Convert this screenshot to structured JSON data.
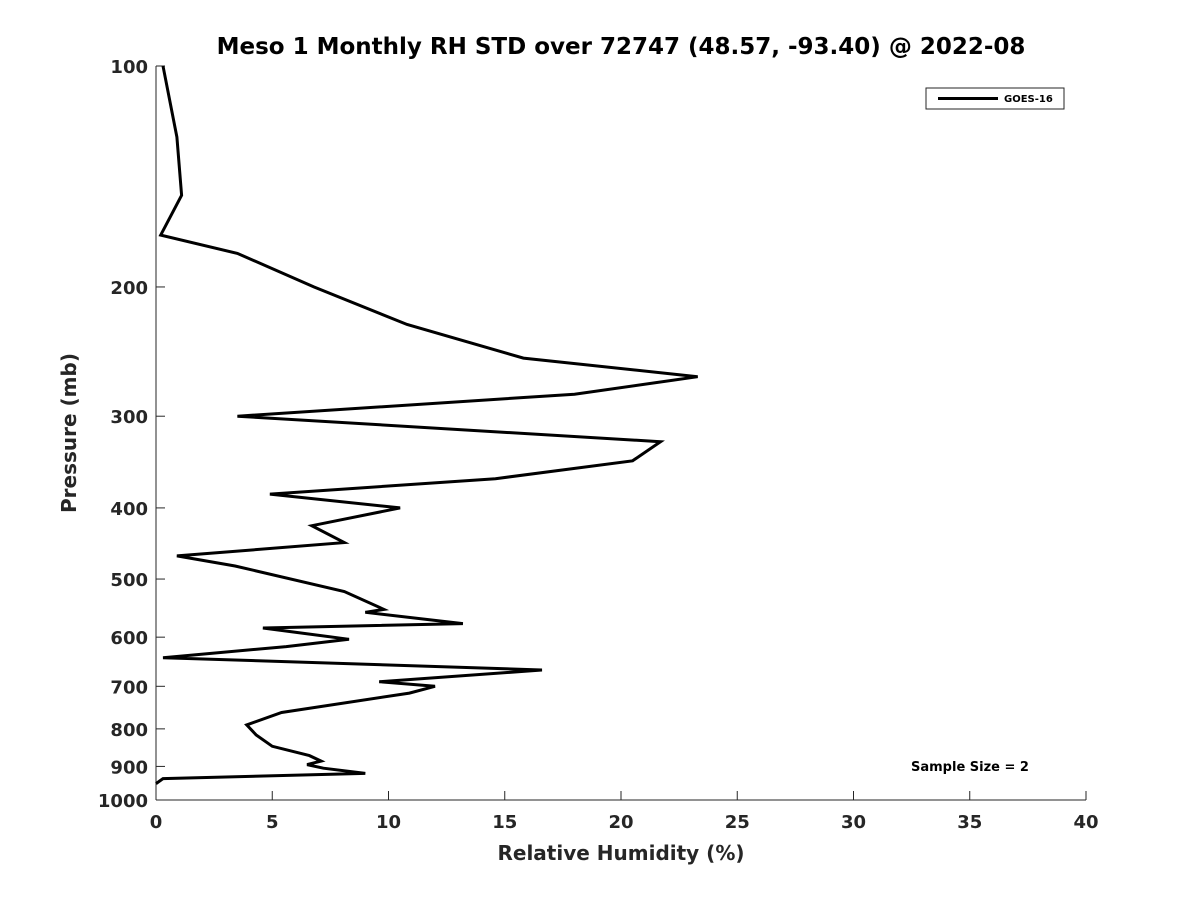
{
  "chart_data": {
    "type": "line",
    "title": "Meso 1 Monthly RH STD over 72747 (48.57, -93.40) @ 2022-08",
    "xlabel": "Relative Humidity (%)",
    "ylabel": "Pressure (mb)",
    "xlim": [
      0,
      40
    ],
    "ylim": [
      100,
      1000
    ],
    "y_scale": "log",
    "y_reversed": true,
    "x_ticks": [
      0,
      5,
      10,
      15,
      20,
      25,
      30,
      35,
      40
    ],
    "x_tick_labels": [
      "0",
      "5",
      "10",
      "15",
      "20",
      "25",
      "30",
      "35",
      "40"
    ],
    "y_ticks": [
      100,
      200,
      300,
      400,
      500,
      600,
      700,
      800,
      900,
      1000
    ],
    "y_tick_labels": [
      "100",
      "200",
      "300",
      "400",
      "500",
      "600",
      "700",
      "800",
      "900",
      "1000"
    ],
    "grid": false,
    "legend": {
      "position": "top-right",
      "entries": [
        "GOES-16"
      ]
    },
    "annotation": "Sample Size = 2",
    "series": [
      {
        "name": "GOES-16",
        "color": "#000000",
        "points": [
          [
            0.3,
            100
          ],
          [
            0.9,
            125
          ],
          [
            1.1,
            150
          ],
          [
            0.2,
            170
          ],
          [
            3.5,
            180
          ],
          [
            6.8,
            200
          ],
          [
            10.8,
            225
          ],
          [
            15.8,
            250
          ],
          [
            23.3,
            265
          ],
          [
            18.0,
            280
          ],
          [
            3.5,
            300
          ],
          [
            21.7,
            325
          ],
          [
            20.5,
            345
          ],
          [
            14.6,
            365
          ],
          [
            4.9,
            383
          ],
          [
            10.5,
            400
          ],
          [
            6.7,
            423
          ],
          [
            8.1,
            446
          ],
          [
            0.9,
            465
          ],
          [
            3.4,
            480
          ],
          [
            8.1,
            520
          ],
          [
            9.8,
            550
          ],
          [
            9.0,
            555
          ],
          [
            13.2,
            575
          ],
          [
            4.6,
            583
          ],
          [
            8.3,
            604
          ],
          [
            5.6,
            618
          ],
          [
            0.3,
            640
          ],
          [
            16.6,
            665
          ],
          [
            9.6,
            690
          ],
          [
            12.0,
            700
          ],
          [
            10.9,
            715
          ],
          [
            5.4,
            760
          ],
          [
            3.9,
            790
          ],
          [
            4.3,
            815
          ],
          [
            5.0,
            845
          ],
          [
            6.6,
            870
          ],
          [
            7.1,
            885
          ],
          [
            6.5,
            895
          ],
          [
            7.2,
            905
          ],
          [
            9.0,
            920
          ],
          [
            0.3,
            935
          ],
          [
            0.0,
            950
          ]
        ]
      }
    ]
  }
}
